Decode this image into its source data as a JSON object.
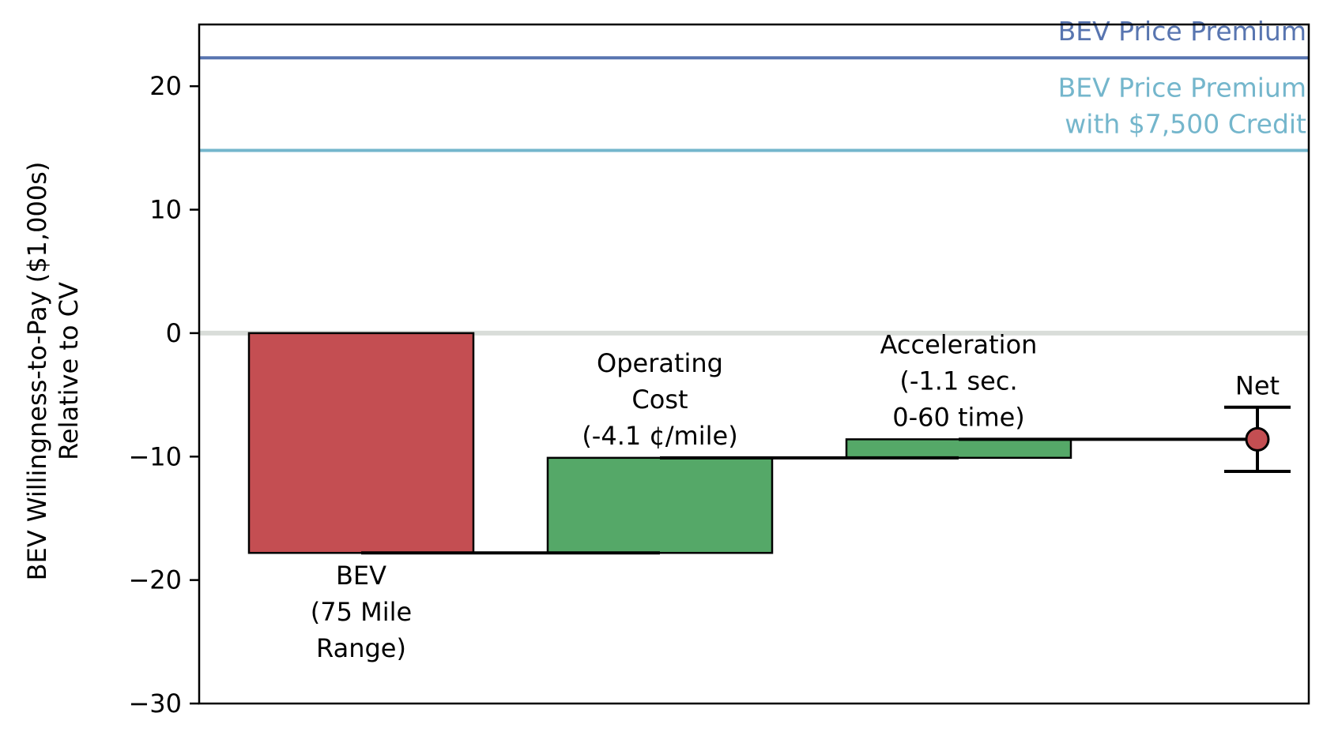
{
  "chart_data": {
    "type": "bar",
    "subtype": "waterfall",
    "title": "",
    "xlabel": "",
    "ylabel_lines": [
      "BEV Willingness-to-Pay ($1,000s)",
      "Relative to CV"
    ],
    "ylim": [
      -30,
      25
    ],
    "yticks": [
      20,
      10,
      0,
      -10,
      -20,
      -30
    ],
    "ytick_labels": [
      "20",
      "10",
      "0",
      "−10",
      "−20",
      "−30"
    ],
    "grid": false,
    "zero_line_color": "#d9ddd9",
    "steps": [
      {
        "label_lines": [
          "BEV",
          "(75 Mile",
          "Range)"
        ],
        "start": 0,
        "end": -17.8,
        "color": "#c44e52",
        "label_position": "below"
      },
      {
        "label_lines": [
          "Operating",
          "Cost",
          "(-4.1 ¢/mile)"
        ],
        "start": -17.8,
        "end": -10.1,
        "color": "#55a868",
        "label_position": "above"
      },
      {
        "label_lines": [
          "Acceleration",
          "(-1.1 sec.",
          "0-60 time)"
        ],
        "start": -10.1,
        "end": -8.6,
        "color": "#55a868",
        "label_position": "above"
      }
    ],
    "net": {
      "label": "Net",
      "value": -8.6,
      "ci_low": -11.2,
      "ci_high": -6.0,
      "color": "#c44e52"
    },
    "reference_lines": [
      {
        "label_lines": [
          "BEV Price Premium"
        ],
        "value": 22.3,
        "color": "#5875b0"
      },
      {
        "label_lines": [
          "BEV Price Premium",
          "with $7,500 Credit"
        ],
        "value": 14.8,
        "color": "#74b6cc"
      }
    ]
  }
}
